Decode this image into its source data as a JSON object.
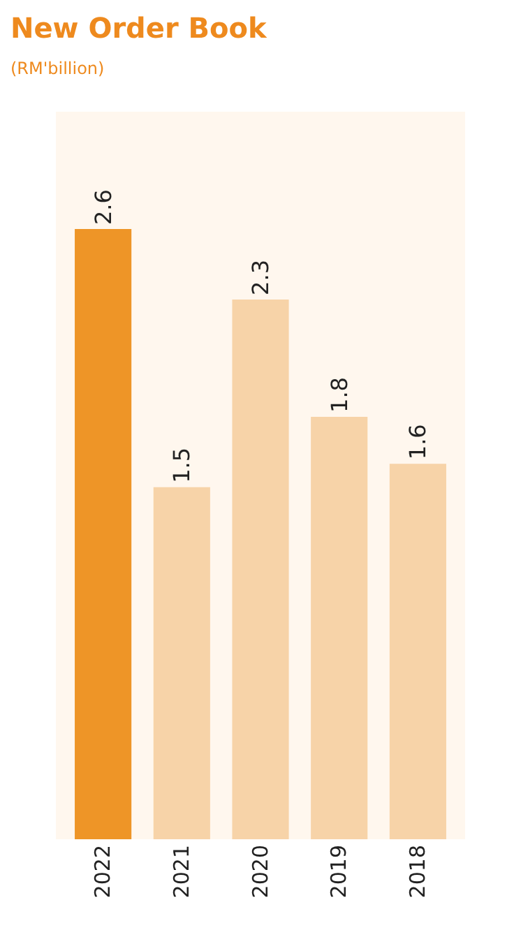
{
  "chart_data": {
    "type": "bar",
    "title": "New Order Book",
    "subtitle": "(RM'billion)",
    "categories": [
      "2022",
      "2021",
      "2020",
      "2019",
      "2018"
    ],
    "values": [
      2.6,
      1.5,
      2.3,
      1.8,
      1.6
    ],
    "colors": [
      "#ee9527",
      "#f7d3a8",
      "#f7d3a8",
      "#f7d3a8",
      "#f7d3a8"
    ],
    "ylim": [
      0,
      3.1
    ],
    "data_labels": true
  }
}
